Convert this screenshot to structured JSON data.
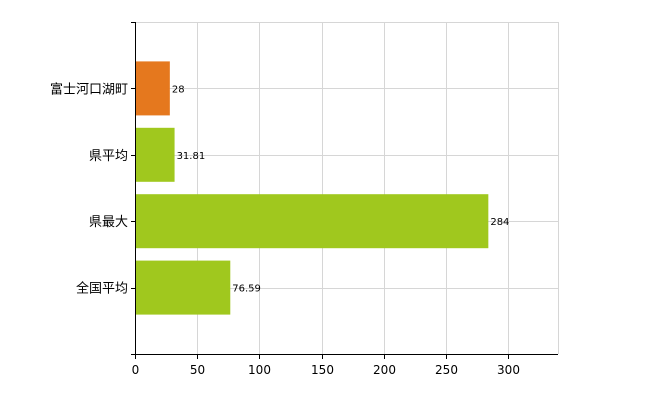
{
  "chart_data": {
    "type": "bar",
    "orientation": "horizontal",
    "categories": [
      "富士河口湖町",
      "県平均",
      "県最大",
      "全国平均"
    ],
    "values": [
      28,
      31.81,
      284,
      76.59
    ],
    "value_labels": [
      "28",
      "31.81",
      "284",
      "76.59"
    ],
    "highlight_index": 0,
    "xlim": [
      0,
      340
    ],
    "x_ticks": [
      0,
      50,
      100,
      150,
      200,
      250,
      300
    ],
    "grid": true,
    "legend": "none"
  },
  "colors": {
    "highlight_bar": "#E5781E",
    "bar": "#A0C81E",
    "grid": "#d6d6d6",
    "axis": "#000000"
  }
}
